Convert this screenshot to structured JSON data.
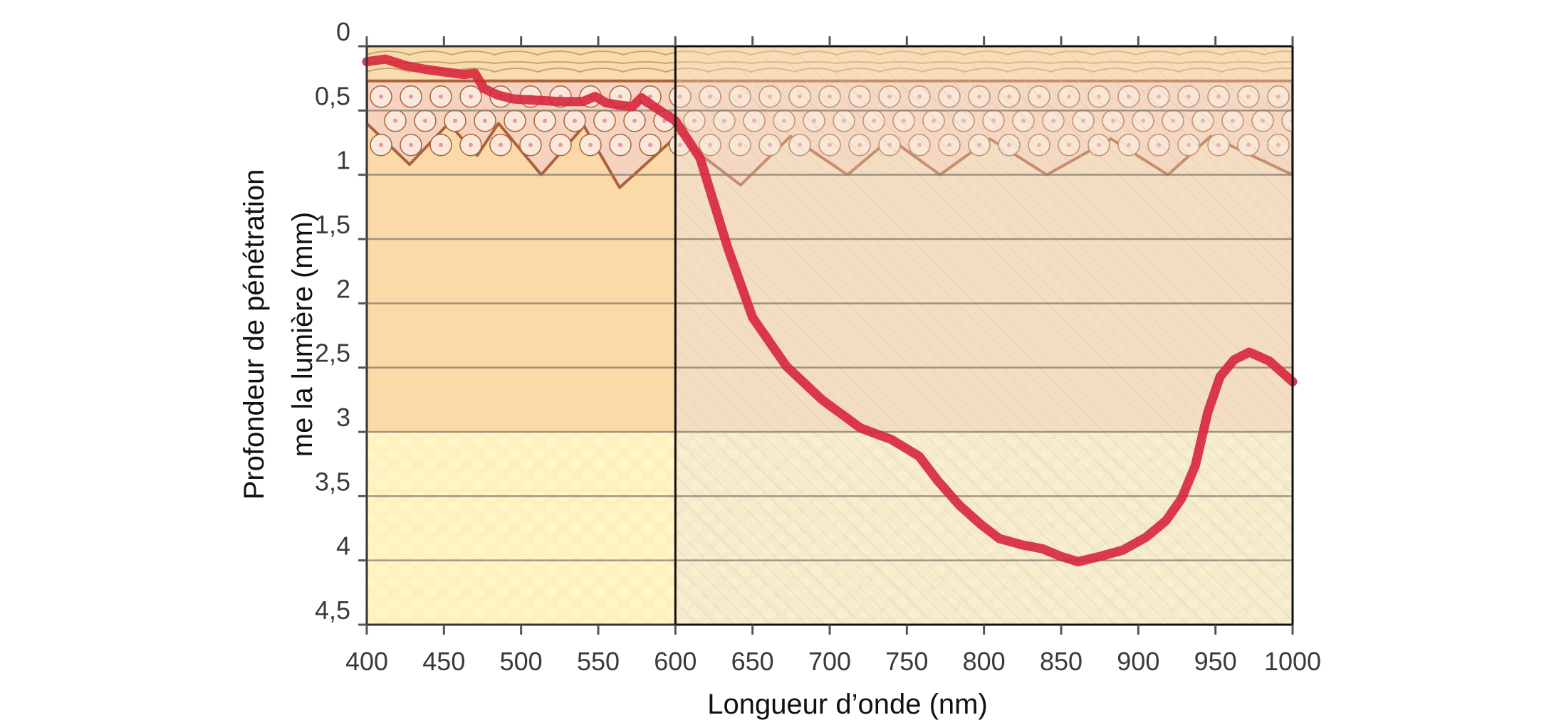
{
  "chart_data": {
    "type": "line",
    "title": "",
    "xlabel": "Longueur d’onde (nm)",
    "ylabel_lines": [
      "Profondeur de pénétration",
      "me la lumière (mm)"
    ],
    "xlim": [
      400,
      1000
    ],
    "ylim": [
      0,
      4.5
    ],
    "y_inverted": true,
    "grid": "horizontal",
    "x_ticks": [
      400,
      450,
      500,
      550,
      600,
      650,
      700,
      750,
      800,
      850,
      900,
      950,
      1000
    ],
    "x_tick_labels": [
      "400",
      "450",
      "500",
      "550",
      "600",
      "650",
      "700",
      "750",
      "800",
      "850",
      "900",
      "950",
      "1000"
    ],
    "y_ticks": [
      0,
      0.5,
      1,
      1.5,
      2,
      2.5,
      3,
      3.5,
      4,
      4.5
    ],
    "y_tick_labels": [
      "0",
      "0,5",
      "1",
      "1,5",
      "2",
      "2,5",
      "3",
      "3,5",
      "4",
      "4,5"
    ],
    "visible_region_boundary_nm": 600,
    "series": [
      {
        "name": "penetration-depth",
        "color": "#d7263d",
        "x": [
          400,
          412,
          425,
          438,
          450,
          463,
          470,
          476,
          485,
          495,
          510,
          525,
          540,
          548,
          555,
          565,
          572,
          578,
          585,
          600,
          616,
          634,
          650,
          672,
          695,
          720,
          740,
          758,
          770,
          784,
          798,
          810,
          825,
          838,
          850,
          861,
          875,
          890,
          905,
          918,
          928,
          937,
          945,
          953,
          962,
          972,
          985,
          1000
        ],
        "y": [
          0.12,
          0.1,
          0.15,
          0.18,
          0.2,
          0.22,
          0.21,
          0.33,
          0.38,
          0.41,
          0.42,
          0.43,
          0.43,
          0.39,
          0.44,
          0.46,
          0.47,
          0.4,
          0.46,
          0.58,
          0.87,
          1.57,
          2.11,
          2.49,
          2.75,
          2.97,
          3.06,
          3.19,
          3.38,
          3.57,
          3.72,
          3.83,
          3.88,
          3.91,
          3.97,
          4.01,
          3.97,
          3.92,
          3.82,
          3.69,
          3.52,
          3.26,
          2.85,
          2.57,
          2.44,
          2.38,
          2.45,
          2.61
        ]
      }
    ],
    "background_layers": [
      {
        "name": "stratum-corneum",
        "from": 0,
        "to": 0.27
      },
      {
        "name": "epidermis",
        "from": 0.27,
        "to": 1.05
      },
      {
        "name": "dermis",
        "from": 1.05,
        "to": 3.0
      },
      {
        "name": "hypodermis",
        "from": 3.0,
        "to": 4.5
      }
    ],
    "colors": {
      "dermis_visible": "#fcd9a8",
      "dermis_ir": "#f3dcbf",
      "hypodermis_visible": "#fdf1bd",
      "hypodermis_ir": "#f5eed0",
      "epidermis_cells": "#a9623a",
      "gridline": "#8a8070"
    }
  }
}
